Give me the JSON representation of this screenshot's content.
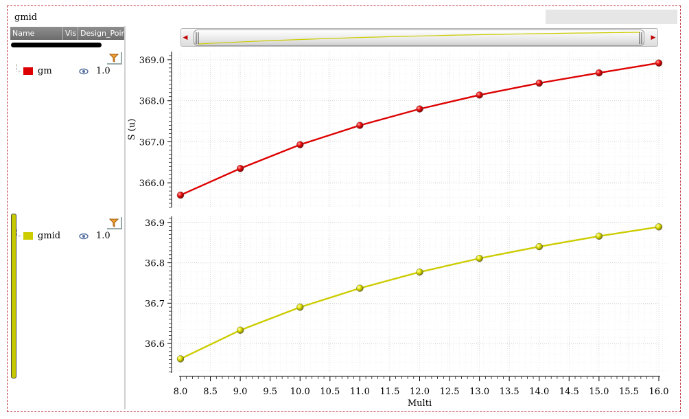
{
  "window": {
    "title": "gmid"
  },
  "tree": {
    "columns": [
      "Name",
      "Vis",
      "Design_Point"
    ],
    "items": [
      {
        "name": "gm",
        "visible_icon": "eye-icon",
        "design_point": "1.0",
        "color": "#dd0000"
      },
      {
        "name": "gmid",
        "visible_icon": "eye-icon",
        "design_point": "1.0",
        "color": "#cccc00"
      }
    ]
  },
  "chart_data": [
    {
      "type": "line",
      "x": [
        8,
        9,
        10,
        11,
        12,
        13,
        14,
        15,
        16
      ],
      "series": [
        {
          "name": "gm",
          "color": "#dd0000",
          "values": [
            365.7,
            366.35,
            366.93,
            367.4,
            367.8,
            368.14,
            368.43,
            368.68,
            368.92
          ]
        }
      ],
      "ylabel": "S (u)",
      "ylim": [
        365.4,
        369.2
      ],
      "yticks": [
        "366.0",
        "367.0",
        "368.0",
        "369.0"
      ],
      "grid": true
    },
    {
      "type": "line",
      "x": [
        8,
        9,
        10,
        11,
        12,
        13,
        14,
        15,
        16
      ],
      "series": [
        {
          "name": "gmid",
          "color": "#cccc00",
          "values": [
            36.562,
            36.633,
            36.69,
            36.737,
            36.777,
            36.811,
            36.84,
            36.866,
            36.889
          ]
        }
      ],
      "ylim": [
        36.527,
        36.915
      ],
      "yticks": [
        "36.6",
        "36.7",
        "36.8",
        "36.9"
      ],
      "xlabel": "Multi",
      "xlim": [
        8,
        16
      ],
      "xticks": [
        "8.0",
        "8.5",
        "9.0",
        "9.5",
        "10.0",
        "10.5",
        "11.0",
        "11.5",
        "12.0",
        "12.5",
        "13.0",
        "13.5",
        "14.0",
        "14.5",
        "15.0",
        "15.5",
        "16.0"
      ],
      "grid": true
    }
  ]
}
